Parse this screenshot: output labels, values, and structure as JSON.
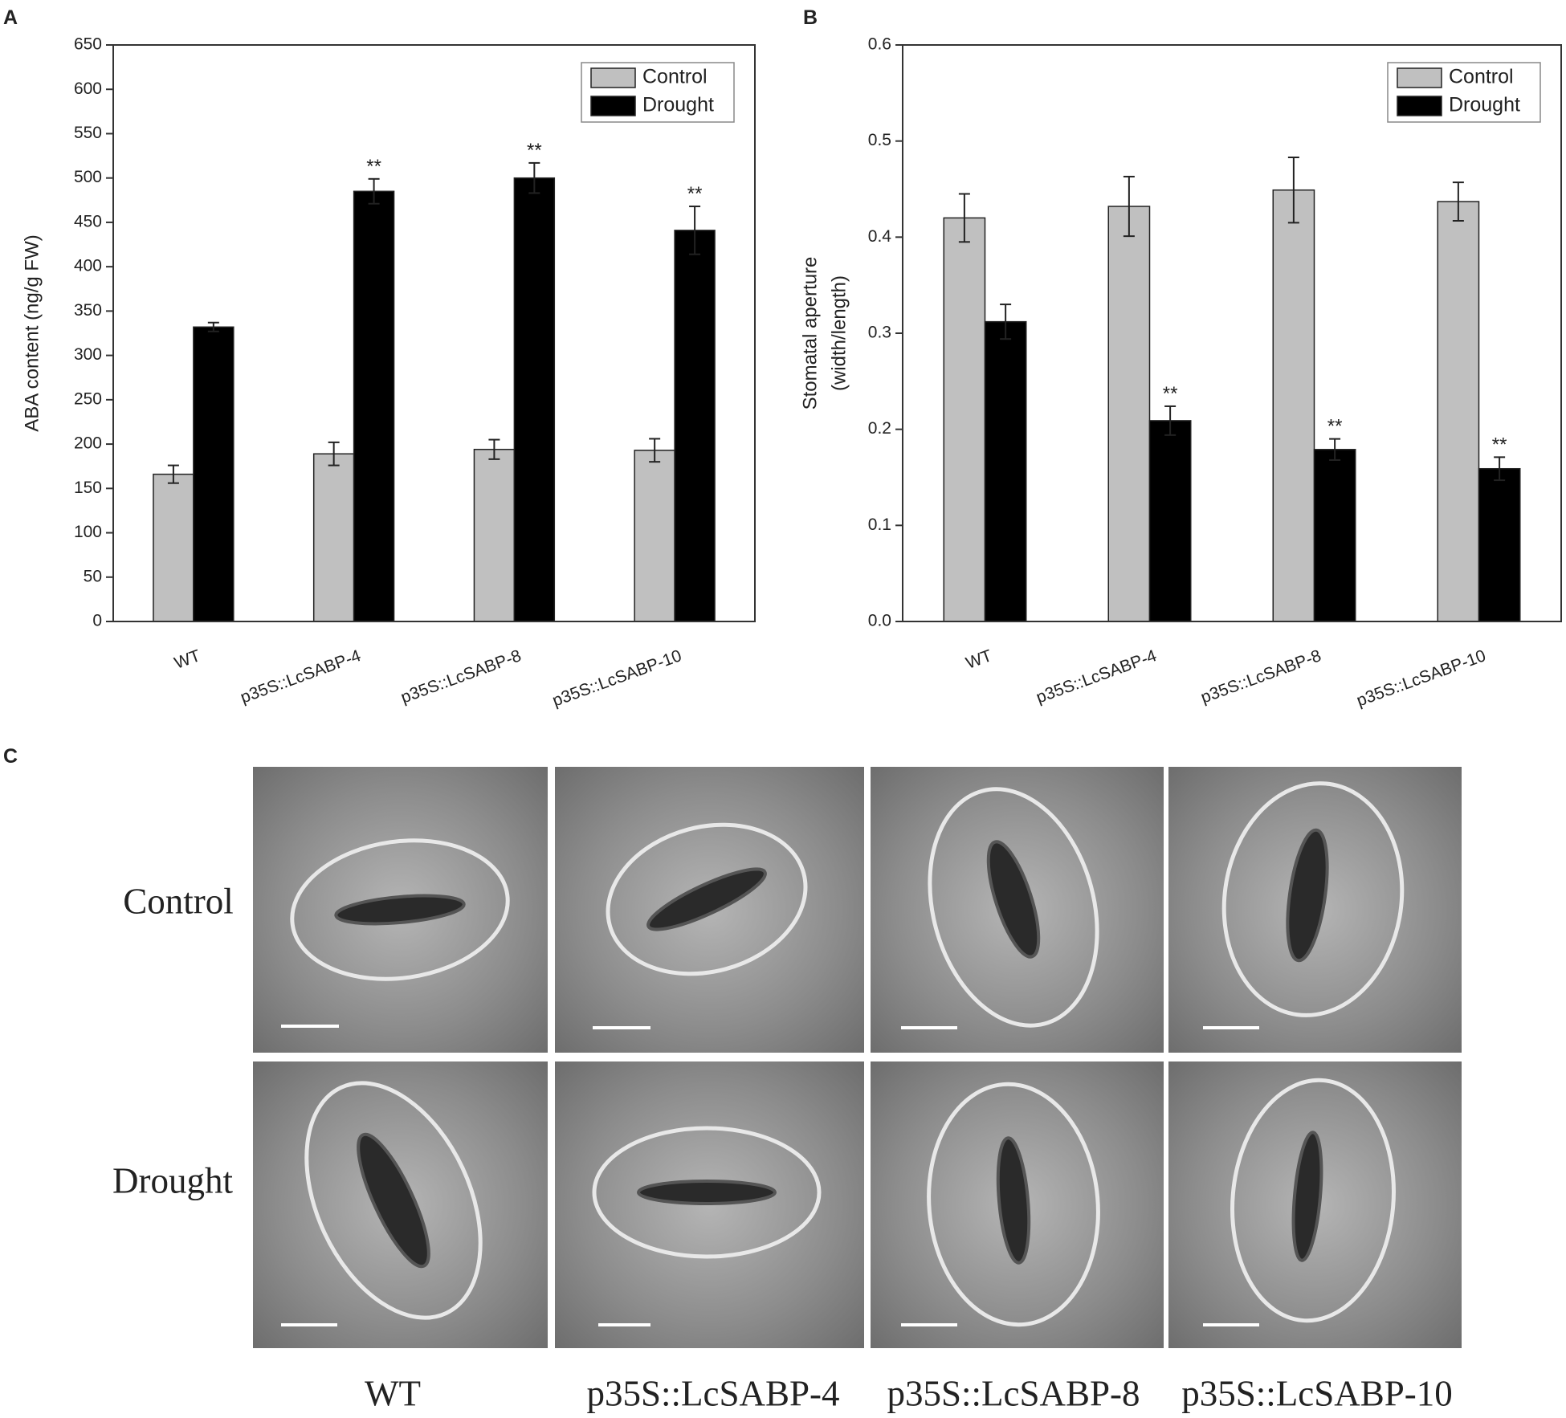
{
  "chart_data": [
    {
      "type": "bar",
      "label": "A",
      "ylabel": [
        "ABA content (ng/g FW)"
      ],
      "categories": [
        "WT",
        "p35S::LcSABP-4",
        "p35S::LcSABP-8",
        "p35S::LcSABP-10"
      ],
      "series": [
        {
          "name": "Control",
          "color": "#c0c0c0",
          "values": [
            166,
            189,
            194,
            193
          ],
          "errors": [
            10,
            13,
            11,
            13
          ],
          "significance": [
            null,
            null,
            null,
            null
          ]
        },
        {
          "name": "Drought",
          "color": "#000000",
          "values": [
            332,
            485,
            500,
            441
          ],
          "errors": [
            5,
            14,
            17,
            27
          ],
          "significance": [
            null,
            "**",
            "**",
            "**"
          ]
        }
      ],
      "ylim": [
        0,
        650
      ],
      "yticks": [
        0,
        50,
        100,
        150,
        200,
        250,
        300,
        350,
        400,
        450,
        500,
        550,
        600,
        650
      ],
      "legend": "upper right",
      "grid": false
    },
    {
      "type": "bar",
      "label": "B",
      "ylabel": [
        "Stomatal aperture",
        "(width/length)"
      ],
      "categories": [
        "WT",
        "p35S::LcSABP-4",
        "p35S::LcSABP-8",
        "p35S::LcSABP-10"
      ],
      "series": [
        {
          "name": "Control",
          "color": "#c0c0c0",
          "values": [
            0.42,
            0.432,
            0.449,
            0.437
          ],
          "errors": [
            0.025,
            0.031,
            0.034,
            0.02
          ],
          "significance": [
            null,
            null,
            null,
            null
          ]
        },
        {
          "name": "Drought",
          "color": "#000000",
          "values": [
            0.312,
            0.209,
            0.179,
            0.159
          ],
          "errors": [
            0.018,
            0.015,
            0.011,
            0.012
          ],
          "significance": [
            null,
            "**",
            "**",
            "**"
          ]
        }
      ],
      "ylim": [
        0,
        0.6
      ],
      "yticks": [
        {
          "value": 0,
          "label": "0.0"
        },
        0.1,
        0.2,
        0.3,
        0.4,
        0.5,
        0.6
      ],
      "legend": "upper right",
      "grid": false
    }
  ],
  "panel_c": {
    "label": "C",
    "rows": [
      "Control",
      "Drought"
    ],
    "columns": [
      "WT",
      "p35S::LcSABP-4",
      "p35S::LcSABP-8",
      "p35S::LcSABP-10"
    ]
  }
}
